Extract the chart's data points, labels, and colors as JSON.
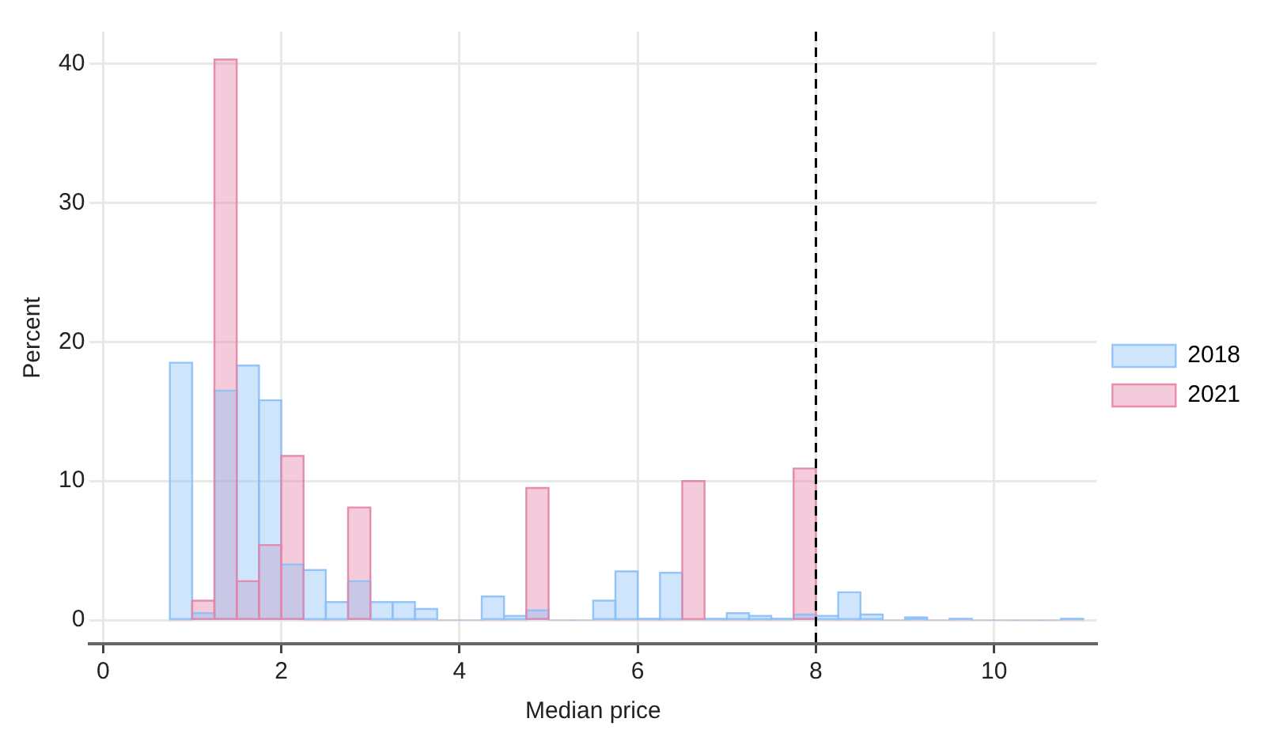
{
  "chart_data": {
    "type": "histogram",
    "xlabel": "Median price",
    "ylabel": "Percent",
    "bins": [
      0.75,
      1,
      1.25,
      1.5,
      1.75,
      2,
      2.25,
      2.5,
      2.75,
      3,
      3.25,
      3.5,
      3.75,
      4,
      4.25,
      4.5,
      4.75,
      5,
      5.25,
      5.5,
      5.75,
      6,
      6.25,
      6.5,
      6.75,
      7,
      7.25,
      7.5,
      7.75,
      8,
      8.25,
      8.5,
      8.75,
      9,
      9.25,
      9.5,
      9.75,
      10,
      10.25,
      10.5,
      10.75,
      11
    ],
    "series": [
      {
        "name": "2018",
        "color": "#8cc0f8",
        "values": [
          18.5,
          0.5,
          16.5,
          18.3,
          15.8,
          4.0,
          3.6,
          1.3,
          2.8,
          1.3,
          1.3,
          0.8,
          0,
          0,
          1.7,
          0.3,
          0.7,
          0,
          0,
          1.4,
          3.5,
          0.1,
          3.4,
          0,
          0.1,
          0.5,
          0.3,
          0.1,
          0.4,
          0.3,
          2.0,
          0.4,
          0,
          0.2,
          0,
          0.1,
          0,
          0,
          0,
          0,
          0.1
        ]
      },
      {
        "name": "2021",
        "color": "#e484a8",
        "values": [
          0,
          1.4,
          40.3,
          2.8,
          5.4,
          11.8,
          0,
          0,
          8.1,
          0,
          0,
          0,
          0,
          0,
          0,
          0,
          9.5,
          0,
          0,
          0,
          0,
          0,
          0,
          10.0,
          0,
          0,
          0,
          0,
          10.9,
          0,
          0,
          0,
          0,
          0,
          0,
          0,
          0,
          0,
          0,
          0,
          0
        ]
      }
    ],
    "xlim": [
      -0.15,
      11.15
    ],
    "ylim": [
      -1.7,
      42.3
    ],
    "xticks": [
      0,
      2,
      4,
      6,
      8,
      10
    ],
    "yticks": [
      0,
      10,
      20,
      30,
      40
    ],
    "ref_lines": [
      {
        "axis": "x",
        "value": 8,
        "color": "#000000",
        "line_style": "dashed"
      }
    ],
    "grid": true,
    "legend": "right"
  }
}
